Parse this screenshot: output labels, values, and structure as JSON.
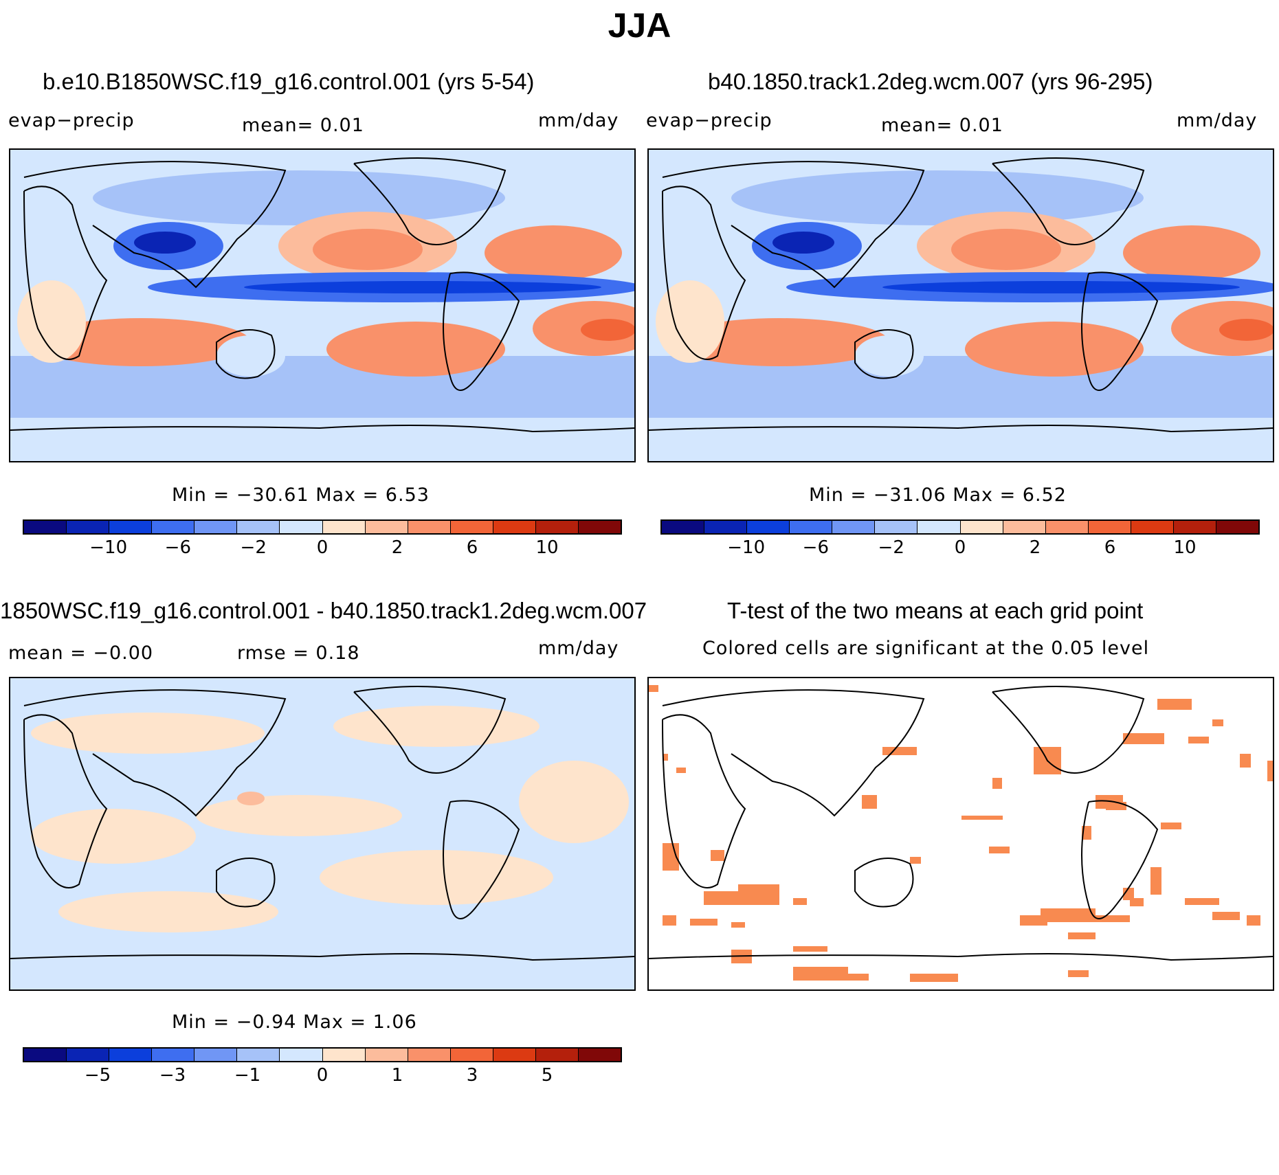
{
  "title": "JJA",
  "colors": {
    "scale": [
      "#0a0a80",
      "#0a24b4",
      "#0c3fdc",
      "#3e6ef0",
      "#7096f5",
      "#a6c2f8",
      "#d4e7fe",
      "#fee4cc",
      "#fcbc9c",
      "#f9916a",
      "#f26538",
      "#dc3a12",
      "#b4200c",
      "#800808"
    ],
    "coast": "#000000",
    "significant": "#f88a50"
  },
  "panels": {
    "p1": {
      "title": "b.e10.B1850WSC.f19_g16.control.001 (yrs 5-54)",
      "variable": "evap−precip",
      "mean": "mean=    0.01",
      "units": "mm/day",
      "minmax": "Min  =  −30.61  Max  =      6.53",
      "ticks": [
        "−10",
        "−6",
        "−2",
        "0",
        "2",
        "6",
        "10"
      ]
    },
    "p2": {
      "title": "b40.1850.track1.2deg.wcm.007 (yrs 96-295)",
      "variable": "evap−precip",
      "mean": "mean=    0.01",
      "units": "mm/day",
      "minmax": "Min  =  −31.06  Max  =      6.52",
      "ticks": [
        "−10",
        "−6",
        "−2",
        "0",
        "2",
        "6",
        "10"
      ]
    },
    "p3": {
      "title": "1850WSC.f19_g16.control.001 - b40.1850.track1.2deg.wcm.007",
      "mean": "mean  =    −0.00",
      "rmse": "rmse  =     0.18",
      "units": "mm/day",
      "minmax": "Min  =    −0.94  Max  =      1.06",
      "ticks": [
        "−5",
        "−3",
        "−1",
        "0",
        "1",
        "3",
        "5"
      ]
    },
    "p4": {
      "title": "T-test of the two means at each grid point",
      "subtitle": "Colored cells are significant at the 0.05 level"
    }
  }
}
